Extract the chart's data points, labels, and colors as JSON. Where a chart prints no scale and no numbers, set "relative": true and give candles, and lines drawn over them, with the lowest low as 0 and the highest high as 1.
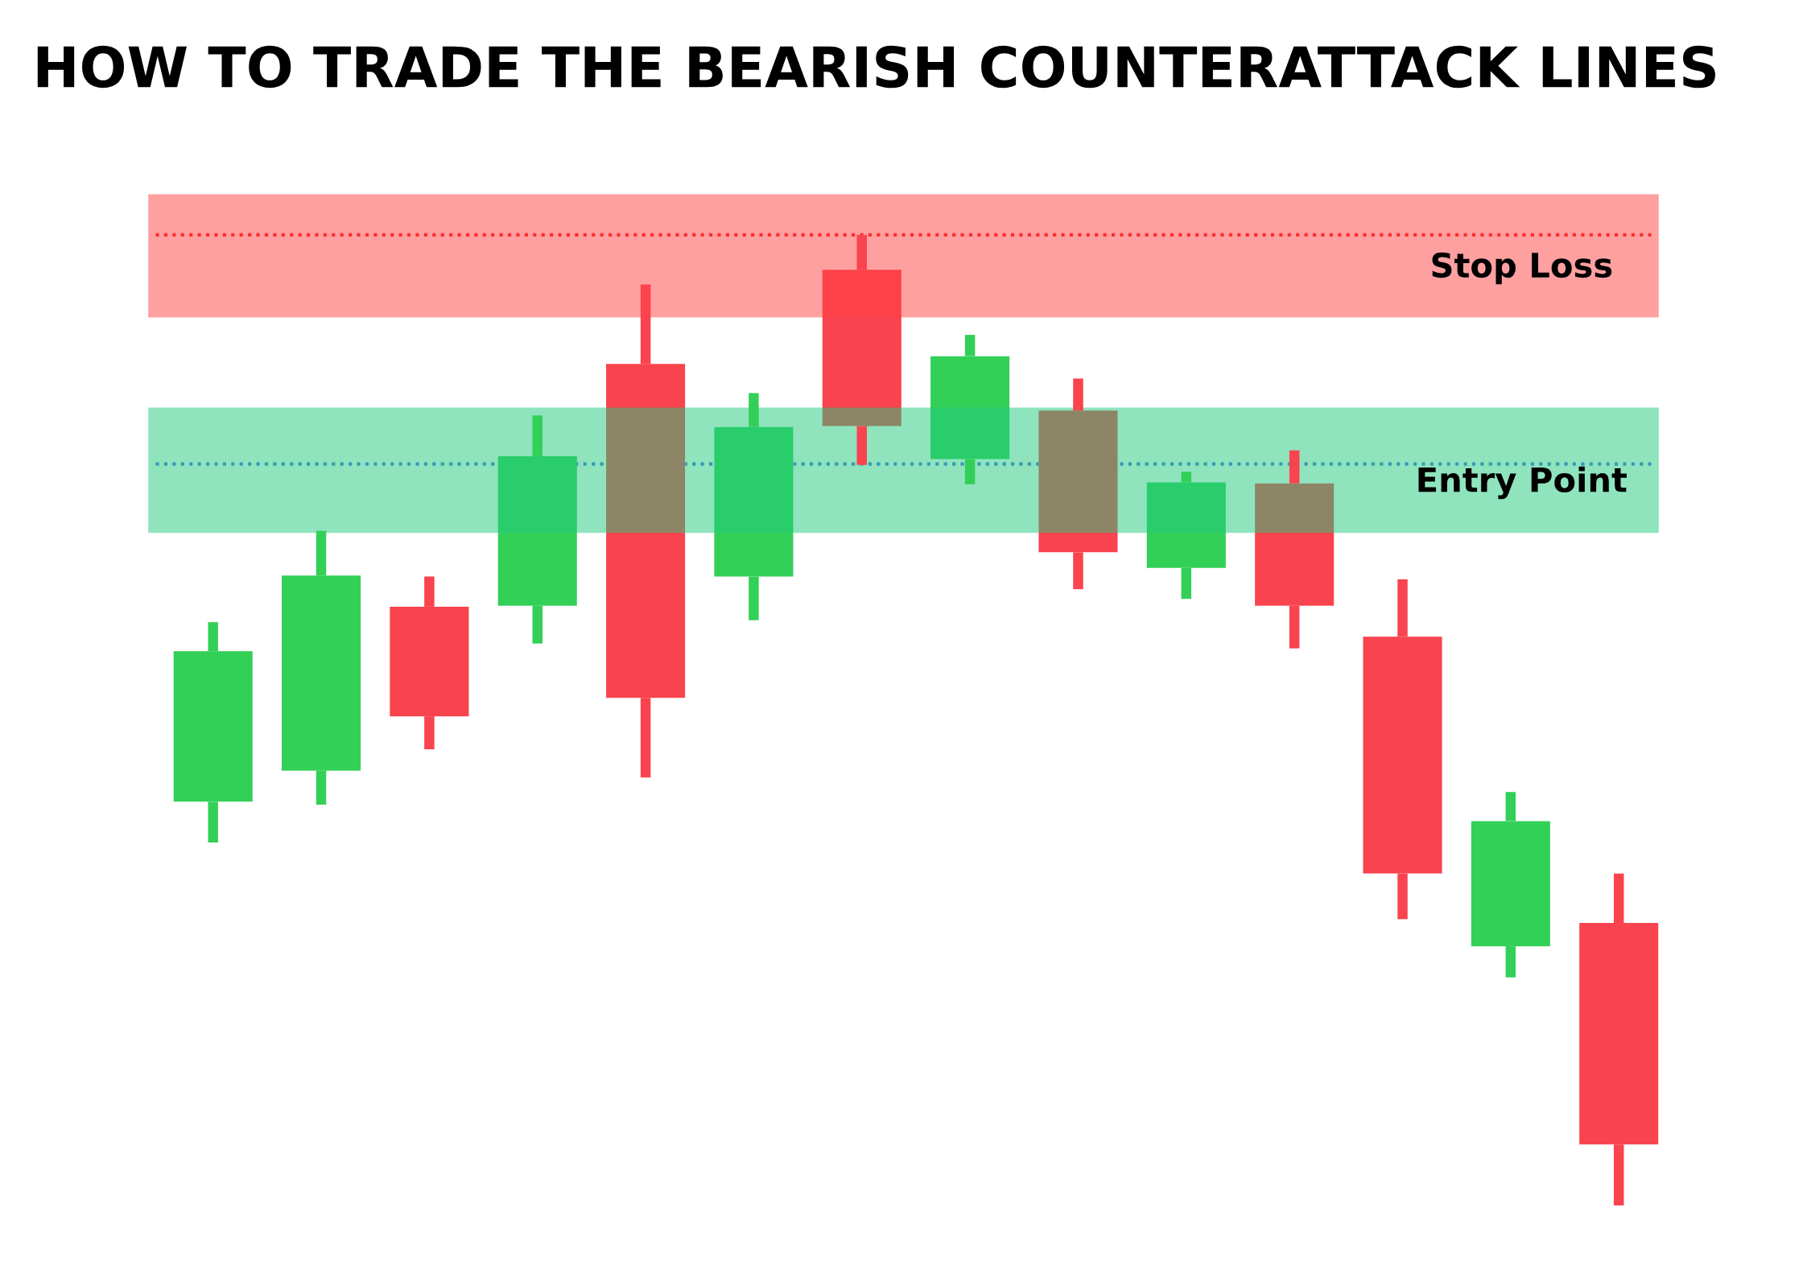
{
  "chart_data": {
    "type": "candlestick",
    "title": "HOW TO TRADE THE BEARISH COUNTERATTACK LINES",
    "relative": true,
    "categories": [
      null,
      null,
      null,
      null,
      null,
      null,
      null,
      null,
      null,
      null,
      null,
      null,
      null,
      null
    ],
    "ohlc": [
      [
        0.416,
        0.601,
        0.374,
        0.571
      ],
      [
        0.448,
        0.695,
        0.413,
        0.649
      ],
      [
        0.617,
        0.648,
        0.47,
        0.504
      ],
      [
        0.618,
        0.814,
        0.579,
        0.772
      ],
      [
        0.867,
        0.949,
        0.441,
        0.523
      ],
      [
        0.648,
        0.837,
        0.603,
        0.802
      ],
      [
        0.964,
        1.0,
        0.763,
        0.803
      ],
      [
        0.769,
        0.897,
        0.743,
        0.875
      ],
      [
        0.819,
        0.852,
        0.635,
        0.673
      ],
      [
        0.657,
        0.756,
        0.625,
        0.745
      ],
      [
        0.744,
        0.778,
        0.574,
        0.618
      ],
      [
        0.586,
        0.645,
        0.295,
        0.342
      ],
      [
        0.267,
        0.426,
        0.235,
        0.396
      ],
      [
        0.291,
        0.342,
        0.0,
        0.063
      ]
    ],
    "colors": [
      "#33d058",
      "#33d058",
      "#f9434e",
      "#33d058",
      "#f9434e",
      "#33d058",
      "#f9434e",
      "#33d058",
      "#f9434e",
      "#33d058",
      "#f9434e",
      "#f9434e",
      "#33d058",
      "#f9434e"
    ],
    "bands": [
      {
        "axis": "y",
        "from": 0.915,
        "to": 1.042,
        "label": "Stop Loss",
        "color": "#ff4242"
      },
      {
        "axis": "y",
        "from": 0.693,
        "to": 0.822,
        "label": "Entry Point",
        "color": "#20c97e"
      }
    ],
    "ref_lines": [
      {
        "axis": "y",
        "value": 1.0,
        "color": "#ff1a1a",
        "line_style": "dotted"
      },
      {
        "axis": "y",
        "value": 0.764,
        "color": "#4a6cf0",
        "line_style": "dotted"
      }
    ],
    "legend": false
  }
}
